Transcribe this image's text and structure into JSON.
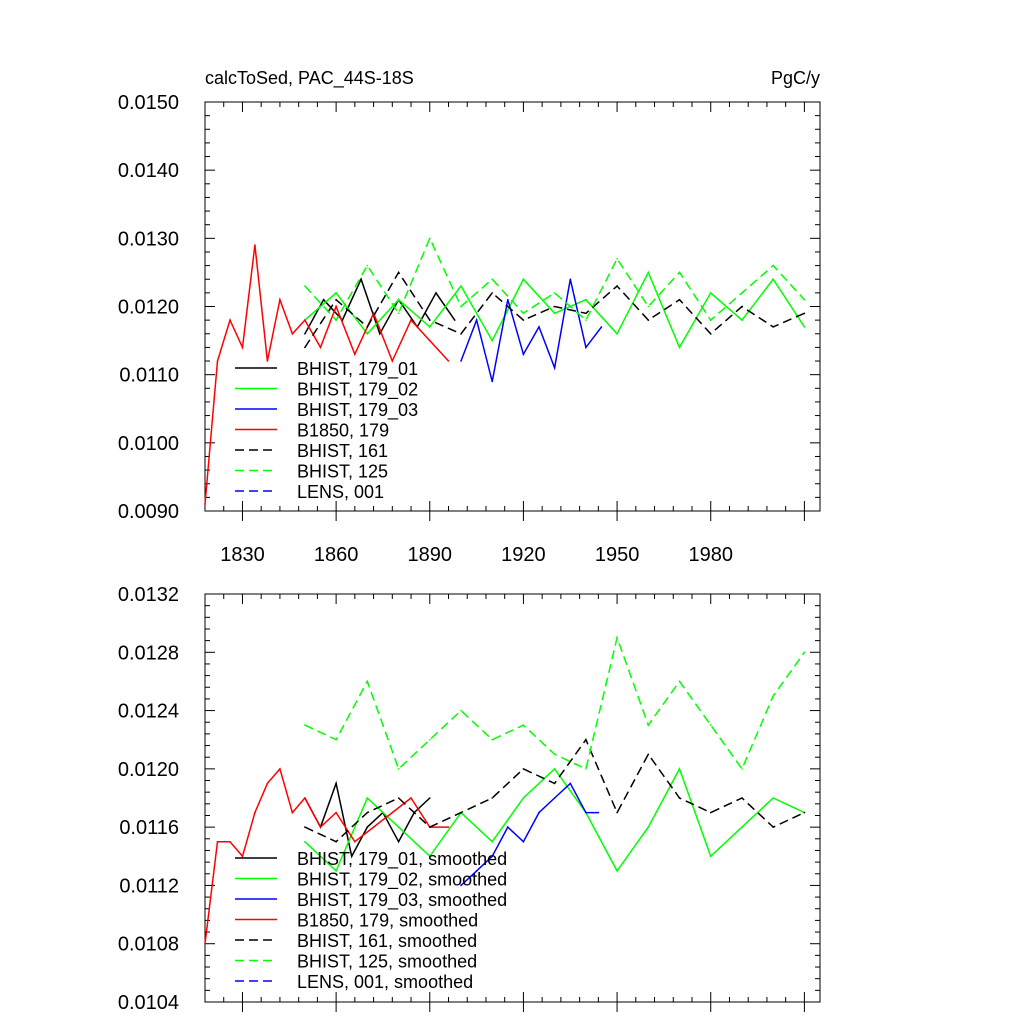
{
  "chart_data": [
    {
      "type": "line",
      "title": "calcToSed, PAC_44S-18S",
      "units": "PgC/y",
      "xlim": [
        1818,
        2015
      ],
      "ylim": [
        0.009,
        0.015
      ],
      "xticks": [
        1830,
        1860,
        1890,
        1920,
        1950,
        1980
      ],
      "yticks": [
        0.009,
        0.01,
        0.011,
        0.012,
        0.013,
        0.014,
        0.015
      ],
      "ytick_labels": [
        "0.0090",
        "0.0100",
        "0.0110",
        "0.0120",
        "0.0130",
        "0.0140",
        "0.0150"
      ],
      "legend_position": "lower-left",
      "series": [
        {
          "name": "BHIST, 179_01",
          "color": "#000000",
          "dash": "solid",
          "x": [
            1850,
            1856,
            1862,
            1868,
            1874,
            1880,
            1886,
            1892,
            1898
          ],
          "y": [
            0.0116,
            0.0121,
            0.0118,
            0.0124,
            0.0116,
            0.0121,
            0.0117,
            0.0122,
            0.0118
          ]
        },
        {
          "name": "BHIST, 179_02",
          "color": "#00ff00",
          "dash": "solid",
          "x": [
            1850,
            1860,
            1870,
            1880,
            1890,
            1900,
            1910,
            1920,
            1930,
            1940,
            1950,
            1960,
            1970,
            1980,
            1990,
            2000,
            2010
          ],
          "y": [
            0.0118,
            0.0122,
            0.0116,
            0.0121,
            0.0117,
            0.0123,
            0.0115,
            0.0124,
            0.0119,
            0.0121,
            0.0116,
            0.0125,
            0.0114,
            0.0122,
            0.0118,
            0.0124,
            0.0117
          ]
        },
        {
          "name": "BHIST, 179_03",
          "color": "#0000ff",
          "dash": "solid",
          "x": [
            1900,
            1905,
            1910,
            1915,
            1920,
            1925,
            1930,
            1935,
            1940,
            1945
          ],
          "y": [
            0.0112,
            0.0118,
            0.0109,
            0.0121,
            0.0113,
            0.0117,
            0.0111,
            0.0124,
            0.0114,
            0.0117
          ]
        },
        {
          "name": "B1850, 179",
          "color": "#ff0000",
          "dash": "solid",
          "x": [
            1818,
            1822,
            1826,
            1830,
            1834,
            1838,
            1842,
            1846,
            1850,
            1855,
            1860,
            1866,
            1872,
            1878,
            1884,
            1890,
            1896
          ],
          "y": [
            0.0091,
            0.0112,
            0.0118,
            0.0114,
            0.0129,
            0.0112,
            0.0121,
            0.0116,
            0.0118,
            0.0114,
            0.012,
            0.0113,
            0.0119,
            0.0112,
            0.0118,
            0.0115,
            0.0112
          ]
        },
        {
          "name": "BHIST, 161",
          "color": "#000000",
          "dash": "dashed",
          "x": [
            1850,
            1860,
            1870,
            1880,
            1890,
            1900,
            1910,
            1920,
            1930,
            1940,
            1950,
            1960,
            1970,
            1980,
            1990,
            2000,
            2010
          ],
          "y": [
            0.0114,
            0.0121,
            0.0117,
            0.0125,
            0.0118,
            0.0116,
            0.0122,
            0.0118,
            0.012,
            0.0119,
            0.0123,
            0.0118,
            0.0121,
            0.0116,
            0.012,
            0.0117,
            0.0119
          ]
        },
        {
          "name": "BHIST, 125",
          "color": "#00ff00",
          "dash": "dashed",
          "x": [
            1850,
            1860,
            1870,
            1880,
            1890,
            1900,
            1910,
            1920,
            1930,
            1940,
            1950,
            1960,
            1970,
            1980,
            1990,
            2000,
            2010
          ],
          "y": [
            0.0123,
            0.0118,
            0.0126,
            0.0119,
            0.013,
            0.012,
            0.0124,
            0.0119,
            0.0122,
            0.0118,
            0.0127,
            0.012,
            0.0125,
            0.0118,
            0.0122,
            0.0126,
            0.0121
          ]
        },
        {
          "name": "LENS, 001",
          "color": "#0000ff",
          "dash": "dashed",
          "x": [],
          "y": []
        }
      ]
    },
    {
      "type": "line",
      "xlim": [
        1818,
        2015
      ],
      "ylim": [
        0.0104,
        0.0132
      ],
      "xticks": [
        1830,
        1860,
        1890,
        1920,
        1950,
        1980
      ],
      "yticks": [
        0.0104,
        0.0108,
        0.0112,
        0.0116,
        0.012,
        0.0124,
        0.0128,
        0.0132
      ],
      "ytick_labels": [
        "0.0104",
        "0.0108",
        "0.0112",
        "0.0116",
        "0.0120",
        "0.0124",
        "0.0128",
        "0.0132"
      ],
      "legend_position": "lower-left",
      "series": [
        {
          "name": "BHIST, 179_01, smoothed",
          "color": "#000000",
          "dash": "solid",
          "x": [
            1850,
            1855,
            1860,
            1865,
            1870,
            1875,
            1880,
            1885,
            1890
          ],
          "y": [
            0.0118,
            0.0116,
            0.0119,
            0.0114,
            0.0116,
            0.0117,
            0.0115,
            0.0117,
            0.0118
          ]
        },
        {
          "name": "BHIST, 179_02, smoothed",
          "color": "#00ff00",
          "dash": "solid",
          "x": [
            1850,
            1860,
            1870,
            1880,
            1890,
            1900,
            1910,
            1920,
            1930,
            1940,
            1950,
            1960,
            1970,
            1980,
            1990,
            2000,
            2010
          ],
          "y": [
            0.0115,
            0.0113,
            0.0118,
            0.0116,
            0.0114,
            0.0117,
            0.0115,
            0.0118,
            0.012,
            0.0117,
            0.0113,
            0.0116,
            0.012,
            0.0114,
            0.0116,
            0.0118,
            0.0117
          ]
        },
        {
          "name": "BHIST, 179_03, smoothed",
          "color": "#0000ff",
          "dash": "solid",
          "x": [
            1900,
            1905,
            1910,
            1915,
            1920,
            1925,
            1930,
            1935,
            1940,
            1944
          ],
          "y": [
            0.0112,
            0.0113,
            0.0114,
            0.0116,
            0.0115,
            0.0117,
            0.0118,
            0.0119,
            0.0117,
            0.0117
          ]
        },
        {
          "name": "B1850, 179, smoothed",
          "color": "#ff0000",
          "dash": "solid",
          "x": [
            1818,
            1822,
            1826,
            1830,
            1834,
            1838,
            1842,
            1846,
            1850,
            1855,
            1860,
            1866,
            1872,
            1878,
            1884,
            1890,
            1896
          ],
          "y": [
            0.0108,
            0.0115,
            0.0115,
            0.0114,
            0.0117,
            0.0119,
            0.012,
            0.0117,
            0.0118,
            0.0116,
            0.0117,
            0.0115,
            0.0116,
            0.0117,
            0.0118,
            0.0116,
            0.0116
          ]
        },
        {
          "name": "BHIST, 161, smoothed",
          "color": "#000000",
          "dash": "dashed",
          "x": [
            1850,
            1860,
            1870,
            1880,
            1890,
            1900,
            1910,
            1920,
            1930,
            1940,
            1950,
            1960,
            1970,
            1980,
            1990,
            2000,
            2010
          ],
          "y": [
            0.0116,
            0.0115,
            0.0117,
            0.0118,
            0.0116,
            0.0117,
            0.0118,
            0.012,
            0.0119,
            0.0122,
            0.0117,
            0.0121,
            0.0118,
            0.0117,
            0.0118,
            0.0116,
            0.0117
          ]
        },
        {
          "name": "BHIST, 125, smoothed",
          "color": "#00ff00",
          "dash": "dashed",
          "x": [
            1850,
            1860,
            1870,
            1880,
            1890,
            1900,
            1910,
            1920,
            1930,
            1940,
            1950,
            1960,
            1970,
            1980,
            1990,
            2000,
            2010
          ],
          "y": [
            0.0123,
            0.0122,
            0.0126,
            0.012,
            0.0122,
            0.0124,
            0.0122,
            0.0123,
            0.0121,
            0.012,
            0.0129,
            0.0123,
            0.0126,
            0.0123,
            0.012,
            0.0125,
            0.0128
          ]
        },
        {
          "name": "LENS, 001, smoothed",
          "color": "#0000ff",
          "dash": "dashed",
          "x": [],
          "y": []
        }
      ]
    }
  ]
}
